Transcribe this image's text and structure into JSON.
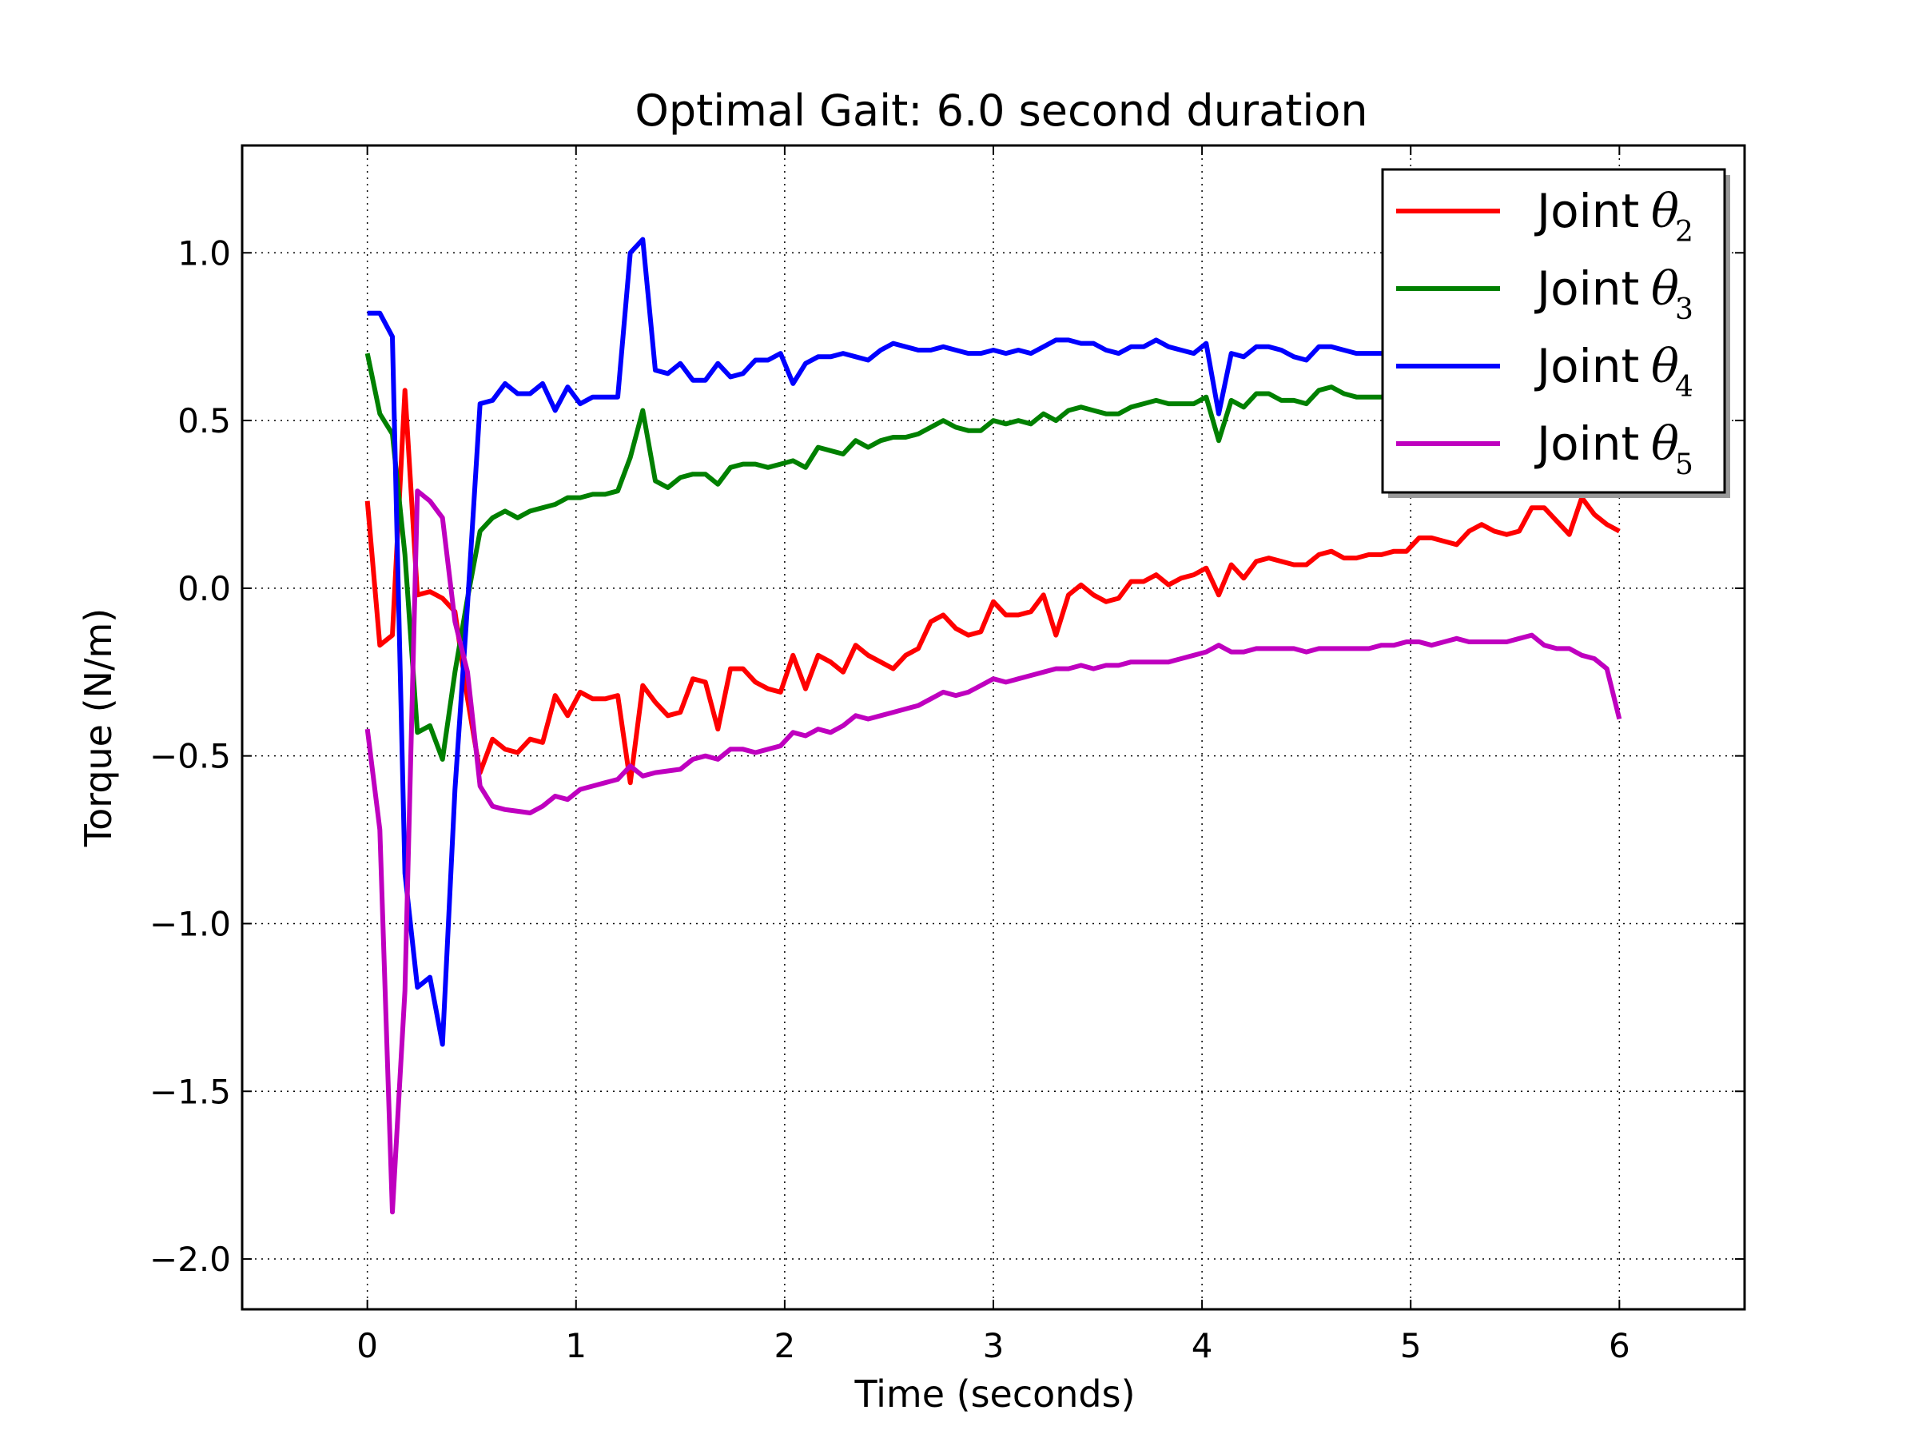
{
  "chart_data": {
    "type": "line",
    "title": "Optimal Gait: 6.0 second duration",
    "xlabel": "Time (seconds)",
    "ylabel": "Torque (N/m)",
    "xlim": [
      -0.6,
      6.6
    ],
    "ylim": [
      -2.15,
      1.32
    ],
    "xticks": [
      0,
      1,
      2,
      3,
      4,
      5,
      6
    ],
    "xtick_labels": [
      "0",
      "1",
      "2",
      "3",
      "4",
      "5",
      "6"
    ],
    "yticks": [
      1.0,
      0.5,
      0.0,
      -0.5,
      -1.0,
      -1.5,
      -2.0
    ],
    "ytick_labels": [
      "1.0",
      "0.5",
      "0.0",
      "−0.5",
      "−1.0",
      "−1.5",
      "−2.0"
    ],
    "grid": true,
    "legend_position": "top-right",
    "series": [
      {
        "name": "Joint θ2",
        "legend_text": "Joint",
        "legend_symbol": "θ",
        "legend_subscript": "2",
        "color": "#ff0000",
        "x": [
          0,
          0.06,
          0.12,
          0.18,
          0.24,
          0.3,
          0.36,
          0.42,
          0.48,
          0.54,
          0.6,
          0.66,
          0.72,
          0.78,
          0.84,
          0.9,
          0.96,
          1.02,
          1.08,
          1.14,
          1.2,
          1.26,
          1.32,
          1.38,
          1.44,
          1.5,
          1.56,
          1.62,
          1.68,
          1.74,
          1.8,
          1.86,
          1.92,
          1.98,
          2.04,
          2.1,
          2.16,
          2.22,
          2.28,
          2.34,
          2.4,
          2.46,
          2.52,
          2.58,
          2.64,
          2.7,
          2.76,
          2.82,
          2.88,
          2.94,
          3.0,
          3.06,
          3.12,
          3.18,
          3.24,
          3.3,
          3.36,
          3.42,
          3.48,
          3.54,
          3.6,
          3.66,
          3.72,
          3.78,
          3.84,
          3.9,
          3.96,
          4.02,
          4.08,
          4.14,
          4.2,
          4.26,
          4.32,
          4.38,
          4.44,
          4.5,
          4.56,
          4.62,
          4.68,
          4.74,
          4.8,
          4.86,
          4.92,
          4.98,
          5.04,
          5.1,
          5.16,
          5.22,
          5.28,
          5.34,
          5.4,
          5.46,
          5.52,
          5.58,
          5.64,
          5.7,
          5.76,
          5.82,
          5.88,
          5.94,
          6.0
        ],
        "values": [
          0.26,
          -0.17,
          -0.14,
          0.59,
          -0.02,
          -0.01,
          -0.03,
          -0.07,
          -0.33,
          -0.55,
          -0.45,
          -0.48,
          -0.49,
          -0.45,
          -0.46,
          -0.32,
          -0.38,
          -0.31,
          -0.33,
          -0.33,
          -0.32,
          -0.58,
          -0.29,
          -0.34,
          -0.38,
          -0.37,
          -0.27,
          -0.28,
          -0.42,
          -0.24,
          -0.24,
          -0.28,
          -0.3,
          -0.31,
          -0.2,
          -0.3,
          -0.2,
          -0.22,
          -0.25,
          -0.17,
          -0.2,
          -0.22,
          -0.24,
          -0.2,
          -0.18,
          -0.1,
          -0.08,
          -0.12,
          -0.14,
          -0.13,
          -0.04,
          -0.08,
          -0.08,
          -0.07,
          -0.02,
          -0.14,
          -0.02,
          0.01,
          -0.02,
          -0.04,
          -0.03,
          0.02,
          0.02,
          0.04,
          0.01,
          0.03,
          0.04,
          0.06,
          -0.02,
          0.07,
          0.03,
          0.08,
          0.09,
          0.08,
          0.07,
          0.07,
          0.1,
          0.11,
          0.09,
          0.09,
          0.1,
          0.1,
          0.11,
          0.11,
          0.15,
          0.15,
          0.14,
          0.13,
          0.17,
          0.19,
          0.17,
          0.16,
          0.17,
          0.24,
          0.24,
          0.2,
          0.16,
          0.27,
          0.22,
          0.19,
          0.17
        ]
      },
      {
        "name": "Joint θ3",
        "legend_text": "Joint",
        "legend_symbol": "θ",
        "legend_subscript": "3",
        "color": "#008000",
        "x": [
          0,
          0.06,
          0.12,
          0.18,
          0.24,
          0.3,
          0.36,
          0.42,
          0.48,
          0.54,
          0.6,
          0.66,
          0.72,
          0.78,
          0.84,
          0.9,
          0.96,
          1.02,
          1.08,
          1.14,
          1.2,
          1.26,
          1.32,
          1.38,
          1.44,
          1.5,
          1.56,
          1.62,
          1.68,
          1.74,
          1.8,
          1.86,
          1.92,
          1.98,
          2.04,
          2.1,
          2.16,
          2.22,
          2.28,
          2.34,
          2.4,
          2.46,
          2.52,
          2.58,
          2.64,
          2.7,
          2.76,
          2.82,
          2.88,
          2.94,
          3.0,
          3.06,
          3.12,
          3.18,
          3.24,
          3.3,
          3.36,
          3.42,
          3.48,
          3.54,
          3.6,
          3.66,
          3.72,
          3.78,
          3.84,
          3.9,
          3.96,
          4.02,
          4.08,
          4.14,
          4.2,
          4.26,
          4.32,
          4.38,
          4.44,
          4.5,
          4.56,
          4.62,
          4.68,
          4.74,
          4.8,
          4.86,
          4.92
        ],
        "values": [
          0.7,
          0.52,
          0.46,
          0.1,
          -0.43,
          -0.41,
          -0.51,
          -0.25,
          -0.03,
          0.17,
          0.21,
          0.23,
          0.21,
          0.23,
          0.24,
          0.25,
          0.27,
          0.27,
          0.28,
          0.28,
          0.29,
          0.39,
          0.53,
          0.32,
          0.3,
          0.33,
          0.34,
          0.34,
          0.31,
          0.36,
          0.37,
          0.37,
          0.36,
          0.37,
          0.38,
          0.36,
          0.42,
          0.41,
          0.4,
          0.44,
          0.42,
          0.44,
          0.45,
          0.45,
          0.46,
          0.48,
          0.5,
          0.48,
          0.47,
          0.47,
          0.5,
          0.49,
          0.5,
          0.49,
          0.52,
          0.5,
          0.53,
          0.54,
          0.53,
          0.52,
          0.52,
          0.54,
          0.55,
          0.56,
          0.55,
          0.55,
          0.55,
          0.57,
          0.44,
          0.56,
          0.54,
          0.58,
          0.58,
          0.56,
          0.56,
          0.55,
          0.59,
          0.6,
          0.58,
          0.57,
          0.57,
          0.57,
          0.58
        ]
      },
      {
        "name": "Joint θ4",
        "legend_text": "Joint",
        "legend_symbol": "θ",
        "legend_subscript": "4",
        "color": "#0000ff",
        "x": [
          0,
          0.06,
          0.12,
          0.18,
          0.24,
          0.3,
          0.36,
          0.42,
          0.48,
          0.54,
          0.6,
          0.66,
          0.72,
          0.78,
          0.84,
          0.9,
          0.96,
          1.02,
          1.08,
          1.14,
          1.2,
          1.26,
          1.32,
          1.38,
          1.44,
          1.5,
          1.56,
          1.62,
          1.68,
          1.74,
          1.8,
          1.86,
          1.92,
          1.98,
          2.04,
          2.1,
          2.16,
          2.22,
          2.28,
          2.34,
          2.4,
          2.46,
          2.52,
          2.58,
          2.64,
          2.7,
          2.76,
          2.82,
          2.88,
          2.94,
          3.0,
          3.06,
          3.12,
          3.18,
          3.24,
          3.3,
          3.36,
          3.42,
          3.48,
          3.54,
          3.6,
          3.66,
          3.72,
          3.78,
          3.84,
          3.9,
          3.96,
          4.02,
          4.08,
          4.14,
          4.2,
          4.26,
          4.32,
          4.38,
          4.44,
          4.5,
          4.56,
          4.62,
          4.68,
          4.74,
          4.8,
          4.86,
          4.92
        ],
        "values": [
          0.82,
          0.82,
          0.75,
          -0.85,
          -1.19,
          -1.16,
          -1.36,
          -0.6,
          -0.05,
          0.55,
          0.56,
          0.61,
          0.58,
          0.58,
          0.61,
          0.53,
          0.6,
          0.55,
          0.57,
          0.57,
          0.57,
          1.0,
          1.04,
          0.65,
          0.64,
          0.67,
          0.62,
          0.62,
          0.67,
          0.63,
          0.64,
          0.68,
          0.68,
          0.7,
          0.61,
          0.67,
          0.69,
          0.69,
          0.7,
          0.69,
          0.68,
          0.71,
          0.73,
          0.72,
          0.71,
          0.71,
          0.72,
          0.71,
          0.7,
          0.7,
          0.71,
          0.7,
          0.71,
          0.7,
          0.72,
          0.74,
          0.74,
          0.73,
          0.73,
          0.71,
          0.7,
          0.72,
          0.72,
          0.74,
          0.72,
          0.71,
          0.7,
          0.73,
          0.52,
          0.7,
          0.69,
          0.72,
          0.72,
          0.71,
          0.69,
          0.68,
          0.72,
          0.72,
          0.71,
          0.7,
          0.7,
          0.7,
          0.71
        ]
      },
      {
        "name": "Joint θ5",
        "legend_text": "Joint",
        "legend_symbol": "θ",
        "legend_subscript": "5",
        "color": "#bf00bf",
        "x": [
          0,
          0.06,
          0.12,
          0.18,
          0.24,
          0.3,
          0.36,
          0.42,
          0.48,
          0.54,
          0.6,
          0.66,
          0.72,
          0.78,
          0.84,
          0.9,
          0.96,
          1.02,
          1.08,
          1.14,
          1.2,
          1.26,
          1.32,
          1.38,
          1.44,
          1.5,
          1.56,
          1.62,
          1.68,
          1.74,
          1.8,
          1.86,
          1.92,
          1.98,
          2.04,
          2.1,
          2.16,
          2.22,
          2.28,
          2.34,
          2.4,
          2.46,
          2.52,
          2.58,
          2.64,
          2.7,
          2.76,
          2.82,
          2.88,
          2.94,
          3.0,
          3.06,
          3.12,
          3.18,
          3.24,
          3.3,
          3.36,
          3.42,
          3.48,
          3.54,
          3.6,
          3.66,
          3.72,
          3.78,
          3.84,
          3.9,
          3.96,
          4.02,
          4.08,
          4.14,
          4.2,
          4.26,
          4.32,
          4.38,
          4.44,
          4.5,
          4.56,
          4.62,
          4.68,
          4.74,
          4.8,
          4.86,
          4.92,
          4.98,
          5.04,
          5.1,
          5.16,
          5.22,
          5.28,
          5.34,
          5.4,
          5.46,
          5.52,
          5.58,
          5.64,
          5.7,
          5.76,
          5.82,
          5.88,
          5.94,
          6.0
        ],
        "values": [
          -0.42,
          -0.72,
          -1.86,
          -1.2,
          0.29,
          0.26,
          0.21,
          -0.1,
          -0.25,
          -0.59,
          -0.65,
          -0.66,
          -0.665,
          -0.67,
          -0.65,
          -0.62,
          -0.63,
          -0.6,
          -0.59,
          -0.58,
          -0.57,
          -0.53,
          -0.56,
          -0.55,
          -0.545,
          -0.54,
          -0.51,
          -0.5,
          -0.51,
          -0.48,
          -0.48,
          -0.49,
          -0.48,
          -0.47,
          -0.43,
          -0.44,
          -0.42,
          -0.43,
          -0.41,
          -0.38,
          -0.39,
          -0.38,
          -0.37,
          -0.36,
          -0.35,
          -0.33,
          -0.31,
          -0.32,
          -0.31,
          -0.29,
          -0.27,
          -0.28,
          -0.27,
          -0.26,
          -0.25,
          -0.24,
          -0.24,
          -0.23,
          -0.24,
          -0.23,
          -0.23,
          -0.22,
          -0.22,
          -0.22,
          -0.22,
          -0.21,
          -0.2,
          -0.19,
          -0.17,
          -0.19,
          -0.19,
          -0.18,
          -0.18,
          -0.18,
          -0.18,
          -0.19,
          -0.18,
          -0.18,
          -0.18,
          -0.18,
          -0.18,
          -0.17,
          -0.17,
          -0.16,
          -0.16,
          -0.17,
          -0.16,
          -0.15,
          -0.16,
          -0.16,
          -0.16,
          -0.16,
          -0.15,
          -0.14,
          -0.17,
          -0.18,
          -0.18,
          -0.2,
          -0.21,
          -0.24,
          -0.39
        ]
      }
    ]
  }
}
